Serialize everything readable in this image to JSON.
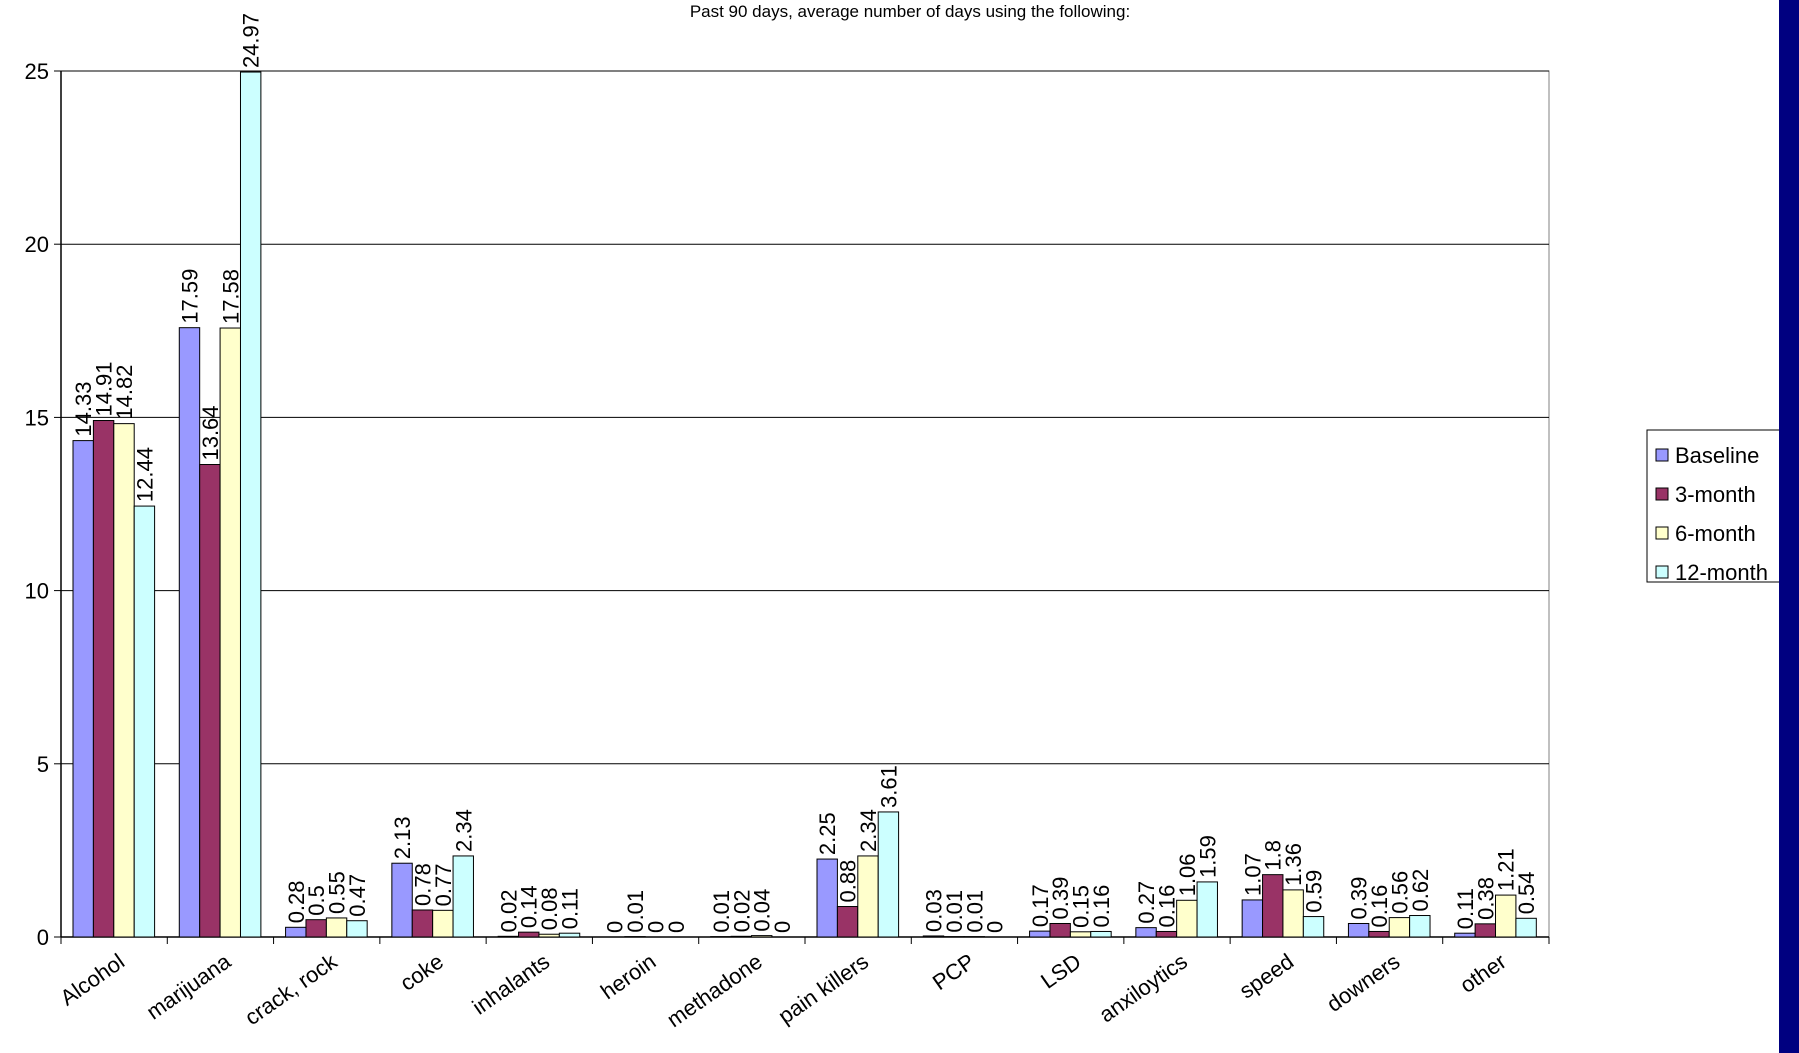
{
  "chart_data": {
    "type": "bar",
    "title": "Past 90 days, average number of days using the following:",
    "xlabel": "",
    "ylabel": "",
    "ylim": [
      0,
      25
    ],
    "yticks": [
      0,
      5,
      10,
      15,
      20,
      25
    ],
    "grid": true,
    "legend_position": "right",
    "categories": [
      "Alcohol",
      "marijuana",
      "crack, rock",
      "coke",
      "inhalants",
      "heroin",
      "methadone",
      "pain killers",
      "PCP",
      "LSD",
      "anxiloytics",
      "speed",
      "downers",
      "other"
    ],
    "series": [
      {
        "name": "Baseline",
        "color": "#9999ff",
        "values": [
          14.33,
          17.59,
          0.28,
          2.13,
          0.02,
          0,
          0.01,
          2.25,
          0.03,
          0.17,
          0.27,
          1.07,
          0.39,
          0.11
        ]
      },
      {
        "name": "3-month",
        "color": "#993366",
        "values": [
          14.91,
          13.64,
          0.5,
          0.78,
          0.14,
          0.01,
          0.02,
          0.88,
          0.01,
          0.39,
          0.16,
          1.8,
          0.16,
          0.38
        ]
      },
      {
        "name": "6-month",
        "color": "#ffffcc",
        "values": [
          14.82,
          17.58,
          0.55,
          0.77,
          0.08,
          0,
          0.04,
          2.34,
          0.01,
          0.15,
          1.06,
          1.36,
          0.56,
          1.21
        ]
      },
      {
        "name": "12-month",
        "color": "#ccffff",
        "values": [
          12.44,
          24.97,
          0.47,
          2.34,
          0.11,
          0,
          0,
          3.61,
          0,
          0.16,
          1.59,
          0.59,
          0.62,
          0.54
        ]
      }
    ]
  },
  "colors": {
    "background": "#ffffff",
    "gridline": "#000000",
    "edge_bar": "#000080"
  }
}
